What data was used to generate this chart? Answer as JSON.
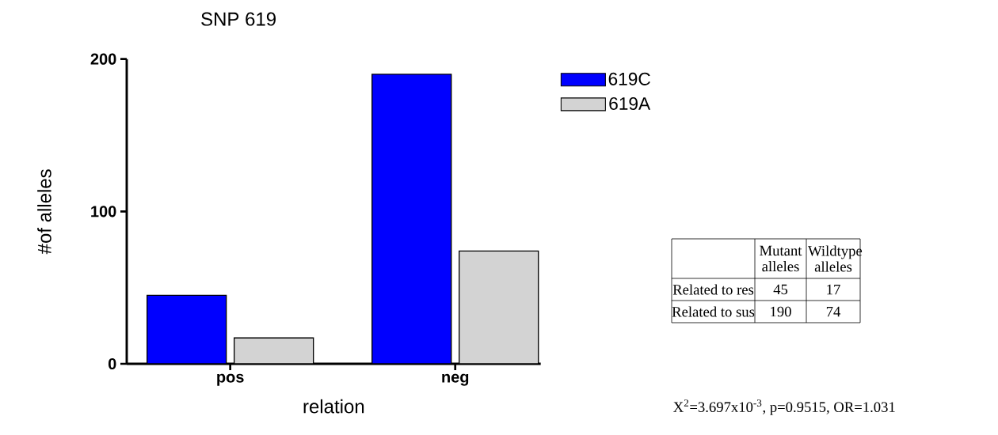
{
  "chart_data": {
    "type": "bar",
    "title": "SNP 619",
    "xlabel": "relation",
    "ylabel": "#of alleles",
    "categories": [
      "pos",
      "neg"
    ],
    "series": [
      {
        "name": "619C",
        "color": "#0000ff",
        "values": [
          45,
          190
        ]
      },
      {
        "name": "619A",
        "color": "#d3d3d3",
        "values": [
          17,
          74
        ]
      }
    ],
    "ylim": [
      0,
      200
    ],
    "yticks": [
      0,
      100,
      200
    ],
    "grid": false,
    "legend": "top right",
    "annotations": [
      "Mutant alleles",
      "Wildtype alleles",
      "Related to res",
      "45",
      "17",
      "Related to sus",
      "190",
      "74",
      "X$^{2}$=3.697x10$^{-3}$, p=0.9515, OR=1.031"
    ]
  }
}
